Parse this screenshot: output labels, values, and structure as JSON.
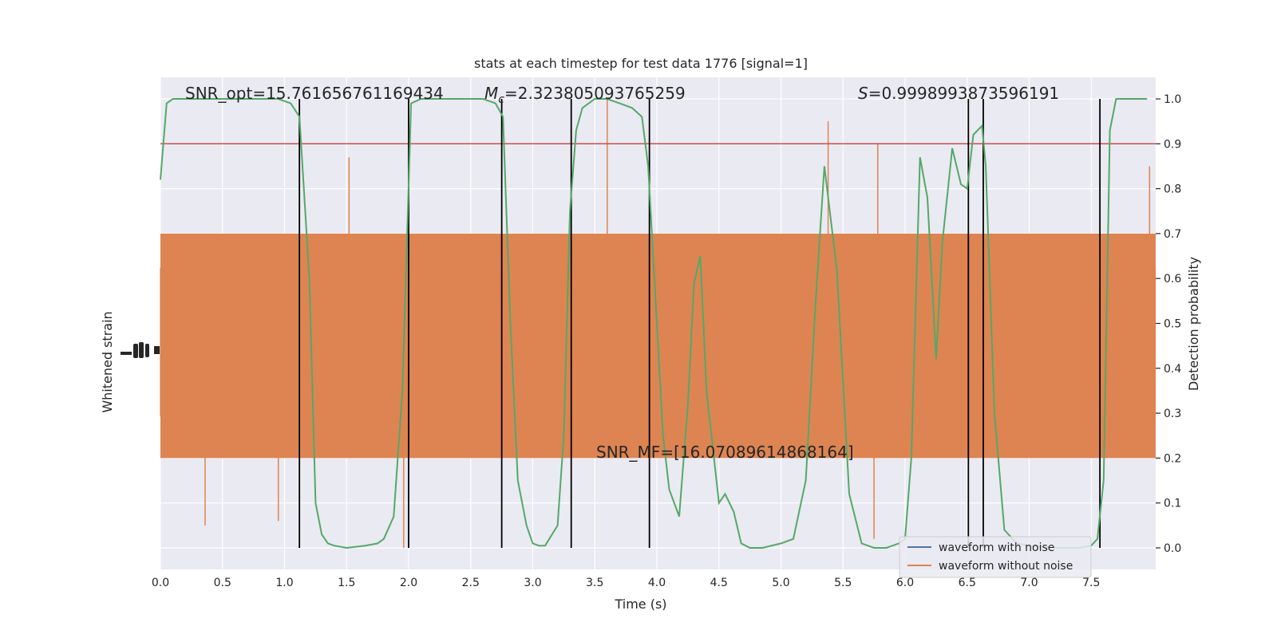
{
  "chart_data": {
    "type": "line",
    "title": "stats at each timestep for test data 1776 [signal=1]",
    "xlabel": "Time (s)",
    "ylabel_left": "Whitened strain",
    "ylabel_right": "Detection probability",
    "xlim": [
      0,
      8
    ],
    "ylim_right": [
      -0.05,
      1.05
    ],
    "x_ticks": [
      "0.0",
      "0.5",
      "1.0",
      "1.5",
      "2.0",
      "2.5",
      "3.0",
      "3.5",
      "4.0",
      "4.5",
      "5.0",
      "5.5",
      "6.0",
      "6.5",
      "7.0",
      "7.5"
    ],
    "y_right_ticks": [
      "0.0",
      "0.1",
      "0.2",
      "0.3",
      "0.4",
      "0.5",
      "0.6",
      "0.7",
      "0.8",
      "0.9",
      "1.0"
    ],
    "grid": true,
    "legend_placement": "lower-right",
    "threshold": 0.9,
    "annotations": {
      "snr_opt": "SNR_opt=15.761656761169434",
      "mc_symbol": "M",
      "mc_sub": "c",
      "mc_value": "=2.323805093765259",
      "s_symbol": "S",
      "s_value": "=0.9998993873596191",
      "snr_mf": "SNR_MF=[16.07089614868164]"
    },
    "series": [
      {
        "name": "waveform with noise",
        "color": "#4c72b0"
      },
      {
        "name": "waveform without noise",
        "color": "#dd8452"
      }
    ],
    "detection_probability": {
      "color": "#55a868",
      "x": [
        0.0,
        0.05,
        0.1,
        0.2,
        0.4,
        0.6,
        0.8,
        0.95,
        1.05,
        1.12,
        1.2,
        1.25,
        1.3,
        1.35,
        1.4,
        1.5,
        1.65,
        1.75,
        1.8,
        1.88,
        1.95,
        2.02,
        2.1,
        2.2,
        2.4,
        2.6,
        2.7,
        2.76,
        2.82,
        2.88,
        2.95,
        3.0,
        3.05,
        3.1,
        3.2,
        3.25,
        3.3,
        3.35,
        3.4,
        3.5,
        3.6,
        3.7,
        3.8,
        3.88,
        3.93,
        4.0,
        4.05,
        4.1,
        4.18,
        4.25,
        4.3,
        4.35,
        4.4,
        4.5,
        4.55,
        4.62,
        4.68,
        4.75,
        4.85,
        5.0,
        5.1,
        5.2,
        5.28,
        5.35,
        5.45,
        5.55,
        5.65,
        5.75,
        5.85,
        5.95,
        6.0,
        6.05,
        6.12,
        6.18,
        6.25,
        6.3,
        6.38,
        6.45,
        6.5,
        6.55,
        6.62,
        6.65,
        6.72,
        6.8,
        6.9,
        7.0,
        7.2,
        7.4,
        7.5,
        7.55,
        7.6,
        7.65,
        7.7,
        7.8,
        7.95
      ],
      "y": [
        0.82,
        0.99,
        1.0,
        1.0,
        1.0,
        1.0,
        1.0,
        1.0,
        0.99,
        0.96,
        0.6,
        0.1,
        0.03,
        0.01,
        0.005,
        0.0,
        0.005,
        0.01,
        0.02,
        0.07,
        0.35,
        0.99,
        1.0,
        1.0,
        1.0,
        1.0,
        0.99,
        0.96,
        0.5,
        0.15,
        0.05,
        0.01,
        0.005,
        0.005,
        0.05,
        0.25,
        0.75,
        0.93,
        0.98,
        1.0,
        1.0,
        0.99,
        0.98,
        0.96,
        0.85,
        0.5,
        0.25,
        0.13,
        0.07,
        0.32,
        0.59,
        0.65,
        0.35,
        0.1,
        0.12,
        0.08,
        0.01,
        0.0,
        0.0,
        0.01,
        0.02,
        0.15,
        0.55,
        0.85,
        0.62,
        0.12,
        0.01,
        0.0,
        0.0,
        0.01,
        0.02,
        0.2,
        0.87,
        0.78,
        0.42,
        0.68,
        0.89,
        0.81,
        0.8,
        0.92,
        0.94,
        0.85,
        0.3,
        0.04,
        0.01,
        0.005,
        0.0,
        0.0,
        0.005,
        0.02,
        0.15,
        0.93,
        1.0,
        1.0,
        1.0
      ],
      "vlines": [
        1.12,
        2.0,
        2.75,
        3.31,
        3.94,
        6.51,
        6.63,
        7.57
      ]
    }
  }
}
